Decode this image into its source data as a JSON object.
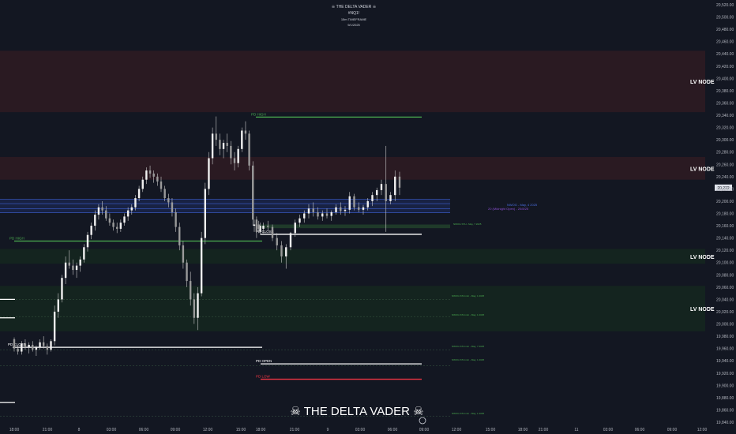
{
  "header": {
    "brand": "☠ THE DELTA VADER ☠",
    "symbol": "#NQ1!",
    "timeframe": "15m TIMEFRAME",
    "date": "9/1/2025"
  },
  "footer": {
    "brand": "☠ THE DELTA VADER ☠"
  },
  "colors": {
    "background": "#131722",
    "candle": "#d9d9d9",
    "pd_high": "#4caf50",
    "pd_low": "#f23645",
    "lv_node_red": "#2a1a22",
    "lv_node_green": "#14241f",
    "blue_zone": "#1c2a5a"
  },
  "chart_data": {
    "type": "candlestick",
    "y_axis": {
      "ylim": [
        19840,
        20520
      ],
      "ticks": [
        "20,520.00",
        "20,500.00",
        "20,480.00",
        "20,460.00",
        "20,440.00",
        "20,420.00",
        "20,400.00",
        "20,380.00",
        "20,360.00",
        "20,340.00",
        "20,320.00",
        "20,300.00",
        "20,280.00",
        "20,260.00",
        "20,240.00",
        "20,220.00",
        "20,200.00",
        "20,180.00",
        "20,160.00",
        "20,140.00",
        "20,120.00",
        "20,100.00",
        "20,080.00",
        "20,060.00",
        "20,040.00",
        "20,020.00",
        "20,000.00",
        "19,980.00",
        "19,960.00",
        "19,940.00",
        "19,920.00",
        "19,900.00",
        "19,880.00",
        "19,860.00",
        "19,840.00"
      ],
      "tick_values": [
        20520,
        20500,
        20480,
        20460,
        20440,
        20420,
        20400,
        20380,
        20360,
        20340,
        20320,
        20300,
        20280,
        20260,
        20240,
        20220,
        20200,
        20180,
        20160,
        20140,
        20120,
        20100,
        20080,
        20060,
        20040,
        20020,
        20000,
        19980,
        19960,
        19940,
        19920,
        19900,
        19880,
        19860,
        19840
      ],
      "current_price_label": "20,222",
      "current_price": 20222
    },
    "x_axis": {
      "ticks": [
        "18:00",
        "21:00",
        "8",
        "03:00",
        "06:00",
        "09:00",
        "12:00",
        "15:00",
        "18:00",
        "21:00",
        "9",
        "03:00",
        "06:00",
        "09:00",
        "12:00",
        "15:00",
        "18:00",
        "21:00",
        "11",
        "03:00",
        "06:00",
        "09:00",
        "12:00"
      ],
      "tick_index": [
        0,
        12,
        24,
        36,
        48,
        60,
        72,
        84,
        96,
        108,
        120,
        132,
        144,
        156,
        168,
        180,
        192,
        204,
        216,
        228,
        240,
        252,
        264
      ]
    },
    "candles": [
      [
        19975,
        19978,
        19955,
        19960
      ],
      [
        19960,
        19965,
        19950,
        19955
      ],
      [
        19955,
        19972,
        19950,
        19968
      ],
      [
        19968,
        19975,
        19958,
        19962
      ],
      [
        19962,
        19970,
        19952,
        19966
      ],
      [
        19966,
        19972,
        19955,
        19958
      ],
      [
        19958,
        19965,
        19948,
        19962
      ],
      [
        19962,
        19975,
        19958,
        19970
      ],
      [
        19970,
        19980,
        19960,
        19964
      ],
      [
        19964,
        19968,
        19950,
        19958
      ],
      [
        19958,
        19975,
        19955,
        19972
      ],
      [
        19972,
        20030,
        19965,
        20020
      ],
      [
        20020,
        20050,
        20010,
        20040
      ],
      [
        20040,
        20080,
        20035,
        20075
      ],
      [
        20075,
        20110,
        20065,
        20100
      ],
      [
        20100,
        20120,
        20090,
        20095
      ],
      [
        20095,
        20105,
        20080,
        20088
      ],
      [
        20088,
        20100,
        20075,
        20095
      ],
      [
        20095,
        20110,
        20085,
        20105
      ],
      [
        20105,
        20130,
        20100,
        20125
      ],
      [
        20125,
        20150,
        20118,
        20145
      ],
      [
        20145,
        20165,
        20138,
        20160
      ],
      [
        20160,
        20185,
        20152,
        20178
      ],
      [
        20178,
        20195,
        20170,
        20190
      ],
      [
        20190,
        20200,
        20178,
        20185
      ],
      [
        20185,
        20192,
        20168,
        20172
      ],
      [
        20172,
        20180,
        20160,
        20165
      ],
      [
        20165,
        20170,
        20152,
        20158
      ],
      [
        20158,
        20165,
        20148,
        20155
      ],
      [
        20155,
        20170,
        20150,
        20165
      ],
      [
        20165,
        20180,
        20160,
        20175
      ],
      [
        20175,
        20190,
        20168,
        20185
      ],
      [
        20185,
        20195,
        20178,
        20190
      ],
      [
        20190,
        20210,
        20185,
        20205
      ],
      [
        20205,
        20225,
        20200,
        20220
      ],
      [
        20220,
        20240,
        20215,
        20235
      ],
      [
        20235,
        20255,
        20228,
        20250
      ],
      [
        20250,
        20258,
        20238,
        20245
      ],
      [
        20245,
        20250,
        20230,
        20240
      ],
      [
        20240,
        20245,
        20225,
        20232
      ],
      [
        20232,
        20240,
        20215,
        20220
      ],
      [
        20220,
        20225,
        20200,
        20205
      ],
      [
        20205,
        20212,
        20190,
        20198
      ],
      [
        20198,
        20205,
        20175,
        20182
      ],
      [
        20182,
        20188,
        20150,
        20158
      ],
      [
        20158,
        20165,
        20120,
        20128
      ],
      [
        20128,
        20135,
        20090,
        20100
      ],
      [
        20100,
        20105,
        20060,
        20070
      ],
      [
        20070,
        20085,
        20030,
        20040
      ],
      [
        20040,
        20050,
        20000,
        20010
      ],
      [
        20010,
        20060,
        19990,
        20050
      ],
      [
        20050,
        20150,
        20045,
        20140
      ],
      [
        20140,
        20230,
        20130,
        20220
      ],
      [
        20220,
        20280,
        20210,
        20270
      ],
      [
        20270,
        20320,
        20260,
        20310
      ],
      [
        20310,
        20338,
        20290,
        20300
      ],
      [
        20300,
        20310,
        20275,
        20285
      ],
      [
        20285,
        20300,
        20270,
        20295
      ],
      [
        20295,
        20310,
        20280,
        20290
      ],
      [
        20290,
        20298,
        20260,
        20270
      ],
      [
        20270,
        20280,
        20250,
        20262
      ],
      [
        20262,
        20290,
        20255,
        20285
      ],
      [
        20285,
        20320,
        20280,
        20315
      ],
      [
        20315,
        20330,
        20300,
        20310
      ],
      [
        20310,
        20315,
        20250,
        20258
      ],
      [
        20258,
        20265,
        20160,
        20170
      ],
      [
        20170,
        20175,
        20140,
        20150
      ],
      [
        20150,
        20165,
        20145,
        20160
      ],
      [
        20160,
        20170,
        20150,
        20162
      ],
      [
        20162,
        20168,
        20148,
        20155
      ],
      [
        20155,
        20165,
        20148,
        20160
      ],
      [
        20160,
        20168,
        20152,
        20158
      ],
      [
        20158,
        20162,
        20135,
        20140
      ],
      [
        20140,
        20148,
        20120,
        20128
      ],
      [
        20128,
        20135,
        20100,
        20110
      ],
      [
        20110,
        20130,
        20090,
        20125
      ],
      [
        20125,
        20150,
        20120,
        20148
      ],
      [
        20148,
        20170,
        20142,
        20165
      ],
      [
        20165,
        20178,
        20158,
        20172
      ],
      [
        20172,
        20185,
        20165,
        20180
      ],
      [
        20180,
        20195,
        20172,
        20188
      ],
      [
        20188,
        20198,
        20175,
        20182
      ],
      [
        20182,
        20190,
        20170,
        20175
      ],
      [
        20175,
        20185,
        20168,
        20180
      ],
      [
        20180,
        20188,
        20172,
        20176
      ],
      [
        20176,
        20185,
        20168,
        20182
      ],
      [
        20182,
        20195,
        20178,
        20190
      ],
      [
        20190,
        20198,
        20178,
        20184
      ],
      [
        20184,
        20192,
        20176,
        20186
      ],
      [
        20186,
        20215,
        20180,
        20208
      ],
      [
        20208,
        20212,
        20185,
        20190
      ],
      [
        20190,
        20198,
        20182,
        20186
      ],
      [
        20186,
        20194,
        20178,
        20190
      ],
      [
        20190,
        20205,
        20185,
        20200
      ],
      [
        20200,
        20215,
        20192,
        20210
      ],
      [
        20210,
        20222,
        20200,
        20218
      ],
      [
        20218,
        20235,
        20210,
        20228
      ],
      [
        20228,
        20290,
        20150,
        20200
      ],
      [
        20200,
        20215,
        20195,
        20210
      ],
      [
        20210,
        20250,
        20200,
        20240
      ],
      [
        20240,
        20248,
        20210,
        20222
      ]
    ]
  },
  "zones": {
    "lv_nodes": [
      {
        "label": "LV NODE",
        "low": 20345,
        "high": 20445,
        "color": "#2a1a22"
      },
      {
        "label": "LV NODE",
        "low": 20235,
        "high": 20272,
        "color": "#2a1a22"
      },
      {
        "label": "LV NODE",
        "low": 20098,
        "high": 20122,
        "color": "#14241f"
      },
      {
        "label": "LV NODE",
        "low": 19988,
        "high": 20062,
        "color": "#14241f"
      }
    ]
  },
  "levels": [
    {
      "label": "PD HIGH",
      "price": 20337,
      "color": "#4caf50"
    },
    {
      "label": "PD HIGH",
      "price": 20135,
      "color": "#4caf50"
    },
    {
      "label": "PD CLOSE",
      "price": 20146,
      "color": "#ffffff"
    },
    {
      "label": "PD CLOSE",
      "price": 19962,
      "color": "#ffffff"
    },
    {
      "label": "PD OPEN",
      "price": 19935,
      "color": "#ffffff"
    },
    {
      "label": "PD LOW",
      "price": 19910,
      "color": "#f23645"
    }
  ],
  "annotations": {
    "blue_label_1": "NWOG - May, 4 2025",
    "blue_label_2": "20 (Midnight Open) - 20/8/25",
    "small_green_1": "NWOG STH - May, 7 2025",
    "small_green_2": "NWOG STH min - May, 1 2025",
    "small_green_3": "NWOG STH min - May, 1 2025",
    "small_green_4": "NWOG STH min - May, 7 2025",
    "small_green_5": "NWOG STH min - May, 1 2025",
    "small_green_6": "NWOG STH min - May, 1 2025"
  }
}
